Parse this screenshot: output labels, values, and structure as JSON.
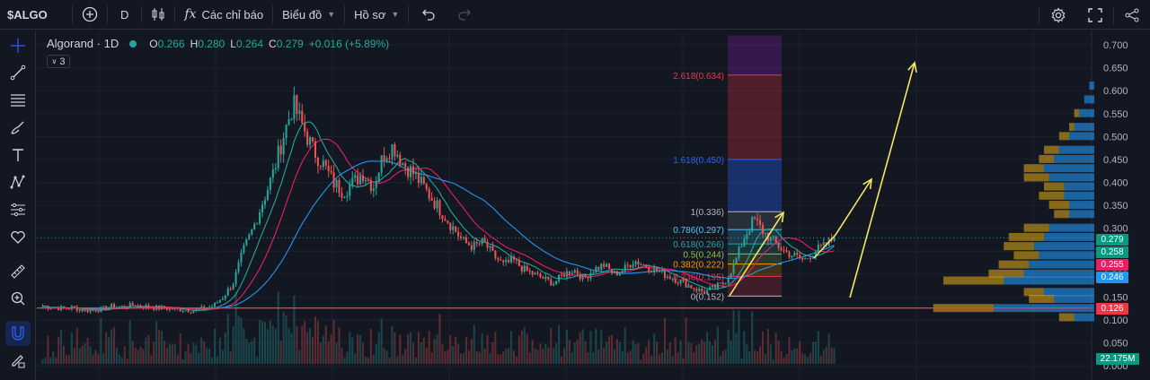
{
  "toolbar": {
    "symbol": "$ALGO",
    "interval": "D",
    "indicators_label": "Các chỉ báo",
    "chart_type_label": "Biểu đồ",
    "template_label": "Hồ sơ"
  },
  "legend": {
    "title": "Algorand · 1D",
    "o_label": "O",
    "o": "0.266",
    "h_label": "H",
    "h": "0.280",
    "l_label": "L",
    "l": "0.264",
    "c_label": "C",
    "c": "0.279",
    "change": "+0.016 (+5.89%)",
    "collapsed_count": "3"
  },
  "left_tools": [
    "crosshair-icon",
    "trendline-icon",
    "fib-icon",
    "brush-icon",
    "text-icon",
    "pattern-icon",
    "forecast-icon",
    "heart-icon",
    "ruler-icon",
    "zoom-in-icon",
    "magnet-icon",
    "lock-pencil-icon"
  ],
  "price_axis": {
    "ticks": [
      "0.700",
      "0.650",
      "0.600",
      "0.550",
      "0.500",
      "0.450",
      "0.400",
      "0.350",
      "0.300",
      "0.250",
      "0.200",
      "0.150",
      "0.100",
      "0.050",
      "0.000"
    ]
  },
  "price_tags": [
    {
      "value": "0.279",
      "color": "#089981"
    },
    {
      "value": "0.258",
      "color": "#089981"
    },
    {
      "value": "0.255",
      "color": "#e91e63"
    },
    {
      "value": "0.246",
      "color": "#2196f3"
    },
    {
      "value": "0.126",
      "color": "#f23645"
    },
    {
      "value": "22.175M",
      "color": "#089981"
    }
  ],
  "fib_levels": [
    {
      "label": "2.618(0.634)",
      "color": "#f23645"
    },
    {
      "label": "1.618(0.450)",
      "color": "#2962ff"
    },
    {
      "label": "1(0.336)",
      "color": "#b2b5be"
    },
    {
      "label": "0.786(0.297)",
      "color": "#4fc3f7"
    },
    {
      "label": "0.618(0.266)",
      "color": "#26a69a"
    },
    {
      "label": "0.5(0.244)",
      "color": "#8bc34a"
    },
    {
      "label": "0.382(0.222)",
      "color": "#ff9800"
    },
    {
      "label": "0.236(0.195)",
      "color": "#f23645"
    },
    {
      "label": "0(0.152)",
      "color": "#b2b5be"
    }
  ],
  "colors": {
    "up": "#26a69a",
    "down": "#ef5350",
    "accent": "#2962ff",
    "annotation": "#f5e663",
    "support": "#f23645"
  },
  "chart_data": {
    "type": "candlestick",
    "symbol": "Algorand",
    "interval": "1D",
    "ylim": [
      0.0,
      0.72
    ],
    "close_path": [
      0.13,
      0.128,
      0.125,
      0.127,
      0.122,
      0.12,
      0.125,
      0.13,
      0.128,
      0.132,
      0.13,
      0.127,
      0.126,
      0.124,
      0.122,
      0.12,
      0.125,
      0.13,
      0.15,
      0.18,
      0.25,
      0.3,
      0.36,
      0.42,
      0.5,
      0.57,
      0.52,
      0.47,
      0.44,
      0.4,
      0.38,
      0.4,
      0.42,
      0.39,
      0.46,
      0.48,
      0.44,
      0.42,
      0.39,
      0.36,
      0.33,
      0.3,
      0.27,
      0.26,
      0.27,
      0.24,
      0.22,
      0.23,
      0.21,
      0.2,
      0.19,
      0.18,
      0.2,
      0.21,
      0.19,
      0.21,
      0.22,
      0.2,
      0.21,
      0.23,
      0.22,
      0.21,
      0.2,
      0.19,
      0.18,
      0.17,
      0.16,
      0.17,
      0.18,
      0.22,
      0.28,
      0.32,
      0.29,
      0.27,
      0.25,
      0.24,
      0.23,
      0.25,
      0.26,
      0.279
    ],
    "support_level": 0.126,
    "fib_range": [
      0.152,
      0.336
    ]
  }
}
